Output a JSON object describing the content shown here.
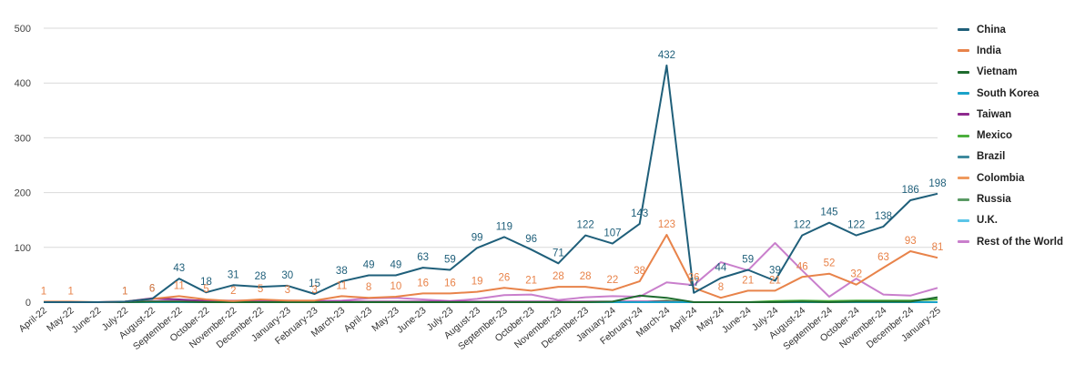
{
  "chart_data": {
    "type": "line",
    "title": "",
    "xlabel": "",
    "ylabel": "",
    "ylim": [
      0,
      500
    ],
    "yticks": [
      "0",
      "100",
      "200",
      "300",
      "400",
      "500"
    ],
    "grid": true,
    "legend_position": "right",
    "categories": [
      "April-22",
      "May-22",
      "June-22",
      "July-22",
      "August-22",
      "September-22",
      "October-22",
      "November-22",
      "December-22",
      "January-23",
      "February-23",
      "March-23",
      "April-23",
      "May-23",
      "June-23",
      "July-23",
      "August-23",
      "September-23",
      "October-23",
      "November-23",
      "December-23",
      "January-24",
      "February-24",
      "March-24",
      "April-24",
      "May-24",
      "June-24",
      "July-24",
      "August-24",
      "September-24",
      "October-24",
      "November-24",
      "December-24",
      "January-25"
    ],
    "series": [
      {
        "name": "China",
        "color": "#1f5f7a",
        "labeled": true,
        "values": [
          0,
          0,
          0,
          1,
          6,
          43,
          18,
          31,
          28,
          30,
          15,
          38,
          49,
          49,
          63,
          59,
          99,
          119,
          96,
          71,
          122,
          107,
          143,
          432,
          17,
          44,
          59,
          39,
          122,
          145,
          122,
          138,
          186,
          198
        ]
      },
      {
        "name": "India",
        "color": "#e8834a",
        "labeled": true,
        "values": [
          1,
          1,
          0,
          1,
          6,
          11,
          5,
          2,
          5,
          3,
          3,
          11,
          8,
          10,
          16,
          16,
          19,
          26,
          21,
          28,
          28,
          22,
          38,
          123,
          26,
          8,
          21,
          21,
          46,
          52,
          32,
          63,
          93,
          81
        ]
      },
      {
        "name": "Vietnam",
        "color": "#1e6b2e",
        "labeled": false,
        "values": [
          0,
          0,
          0,
          0,
          1,
          1,
          0,
          0,
          0,
          0,
          0,
          0,
          0,
          0,
          0,
          0,
          0,
          0,
          0,
          0,
          0,
          1,
          12,
          8,
          0,
          0,
          0,
          0,
          1,
          0,
          1,
          1,
          1,
          9
        ]
      },
      {
        "name": "South Korea",
        "color": "#1aa2c9",
        "labeled": false,
        "values": [
          0,
          0,
          0,
          0,
          0,
          0,
          0,
          0,
          0,
          0,
          0,
          0,
          0,
          0,
          0,
          0,
          0,
          0,
          0,
          0,
          0,
          0,
          0,
          0,
          0,
          0,
          0,
          0,
          0,
          0,
          0,
          0,
          0,
          0
        ]
      },
      {
        "name": "Taiwan",
        "color": "#8e2a8e",
        "labeled": false,
        "values": [
          0,
          0,
          0,
          1,
          7,
          5,
          2,
          1,
          1,
          1,
          1,
          1,
          1,
          1,
          1,
          1,
          1,
          1,
          1,
          1,
          1,
          1,
          1,
          1,
          0,
          0,
          0,
          0,
          0,
          0,
          0,
          0,
          0,
          0
        ]
      },
      {
        "name": "Mexico",
        "color": "#4caf3d",
        "labeled": false,
        "values": [
          0,
          0,
          0,
          0,
          0,
          0,
          0,
          0,
          0,
          0,
          0,
          0,
          0,
          0,
          0,
          0,
          0,
          0,
          0,
          0,
          0,
          0,
          0,
          3,
          0,
          0,
          0,
          2,
          3,
          2,
          3,
          3,
          3,
          5
        ]
      },
      {
        "name": "Brazil",
        "color": "#3f8a9e",
        "labeled": false,
        "values": [
          0,
          0,
          0,
          0,
          0,
          0,
          0,
          0,
          0,
          0,
          0,
          0,
          0,
          0,
          0,
          0,
          0,
          0,
          0,
          0,
          0,
          0,
          0,
          0,
          0,
          0,
          0,
          0,
          0,
          0,
          0,
          0,
          0,
          0
        ]
      },
      {
        "name": "Colombia",
        "color": "#ef9a5e",
        "labeled": false,
        "values": [
          0,
          0,
          0,
          0,
          0,
          0,
          0,
          0,
          0,
          0,
          0,
          0,
          0,
          0,
          0,
          0,
          0,
          0,
          0,
          0,
          0,
          0,
          0,
          0,
          0,
          0,
          0,
          0,
          0,
          0,
          0,
          0,
          0,
          0
        ]
      },
      {
        "name": "Russia",
        "color": "#5a9a64",
        "labeled": false,
        "values": [
          0,
          0,
          0,
          0,
          0,
          0,
          0,
          0,
          0,
          0,
          0,
          0,
          0,
          0,
          0,
          0,
          0,
          0,
          0,
          0,
          0,
          0,
          0,
          0,
          0,
          0,
          0,
          0,
          0,
          0,
          0,
          0,
          0,
          0
        ]
      },
      {
        "name": "U.K.",
        "color": "#5bc5e8",
        "labeled": false,
        "values": [
          0,
          0,
          0,
          0,
          0,
          0,
          0,
          0,
          0,
          0,
          0,
          0,
          0,
          0,
          0,
          0,
          0,
          0,
          0,
          0,
          0,
          0,
          0,
          0,
          0,
          0,
          0,
          0,
          0,
          0,
          0,
          0,
          0,
          0
        ]
      },
      {
        "name": "Rest of the World",
        "color": "#c97fcc",
        "labeled": false,
        "values": [
          0,
          0,
          0,
          0,
          2,
          4,
          3,
          3,
          3,
          3,
          2,
          3,
          7,
          8,
          5,
          2,
          6,
          13,
          14,
          4,
          9,
          11,
          10,
          36,
          31,
          73,
          58,
          108,
          58,
          10,
          43,
          14,
          12,
          26
        ]
      }
    ]
  }
}
